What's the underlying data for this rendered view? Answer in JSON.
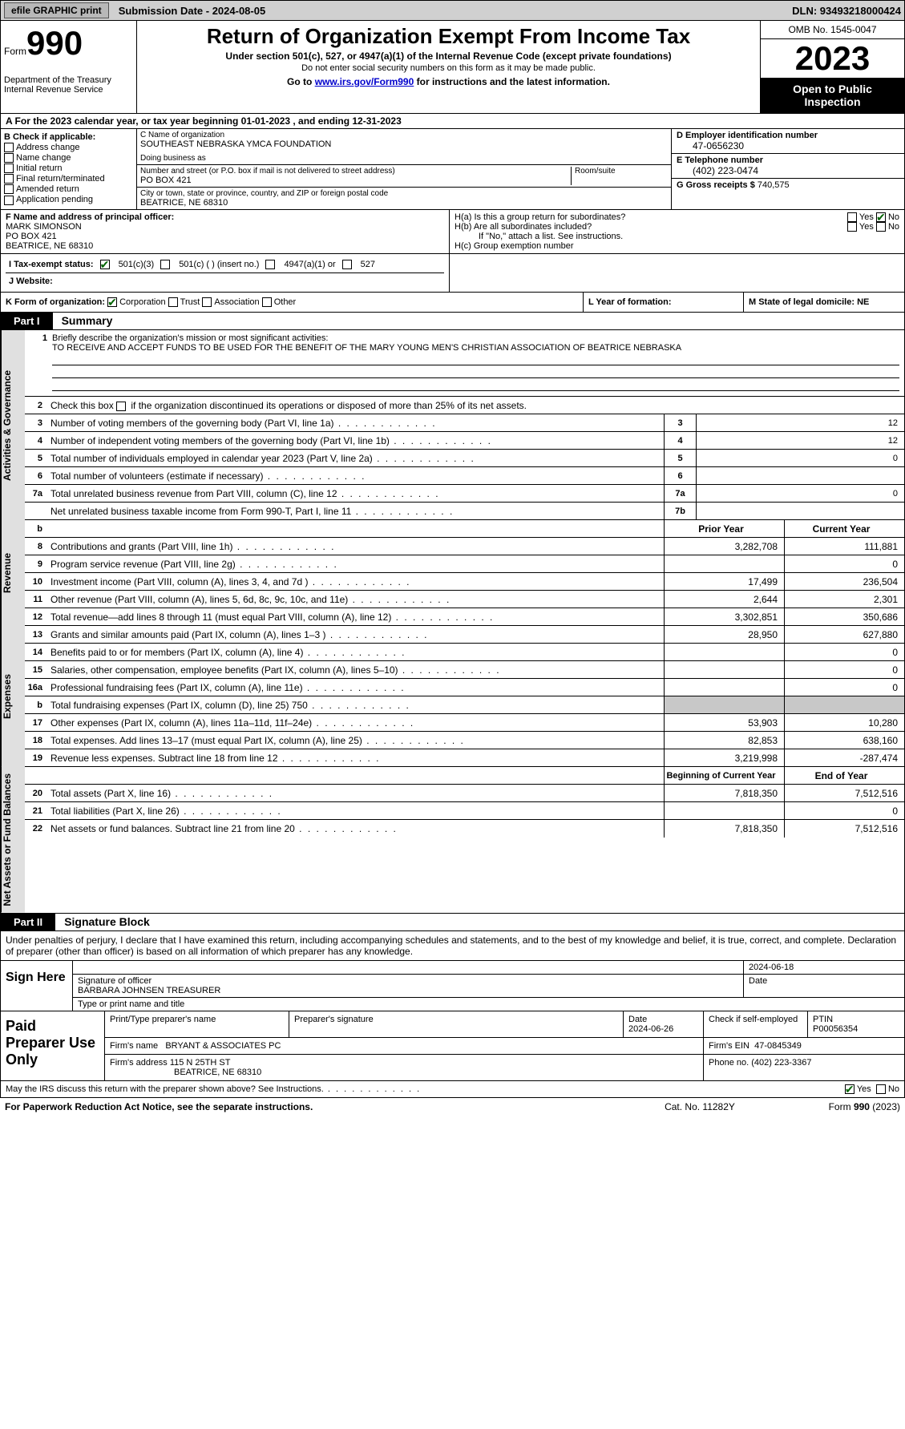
{
  "header_bar": {
    "efile": "efile GRAPHIC print",
    "submission": "Submission Date - 2024-08-05",
    "dln": "DLN: 93493218000424"
  },
  "top": {
    "form_word": "Form",
    "form_num": "990",
    "dept": "Department of the Treasury Internal Revenue Service",
    "title": "Return of Organization Exempt From Income Tax",
    "subtitle": "Under section 501(c), 527, or 4947(a)(1) of the Internal Revenue Code (except private foundations)",
    "note": "Do not enter social security numbers on this form as it may be made public.",
    "goto_prefix": "Go to ",
    "goto_link": "www.irs.gov/Form990",
    "goto_suffix": " for instructions and the latest information.",
    "omb": "OMB No. 1545-0047",
    "year": "2023",
    "open": "Open to Public Inspection"
  },
  "period": "A For the 2023 calendar year, or tax year beginning 01-01-2023   , and ending 12-31-2023",
  "section_b": {
    "label": "B Check if applicable:",
    "items": [
      "Address change",
      "Name change",
      "Initial return",
      "Final return/terminated",
      "Amended return",
      "Application pending"
    ]
  },
  "section_c": {
    "name_lbl": "C Name of organization",
    "name_val": "SOUTHEAST NEBRASKA YMCA FOUNDATION",
    "dba_lbl": "Doing business as",
    "dba_val": "",
    "street_lbl": "Number and street (or P.O. box if mail is not delivered to street address)",
    "room_lbl": "Room/suite",
    "street_val": "PO BOX 421",
    "city_lbl": "City or town, state or province, country, and ZIP or foreign postal code",
    "city_val": "BEATRICE, NE  68310"
  },
  "section_d": {
    "ein_lbl": "D Employer identification number",
    "ein_val": "47-0656230",
    "phone_lbl": "E Telephone number",
    "phone_val": "(402) 223-0474",
    "gross_lbl": "G Gross receipts $",
    "gross_val": "740,575"
  },
  "section_f": {
    "lbl": "F  Name and address of principal officer:",
    "name": "MARK SIMONSON",
    "addr1": "PO BOX 421",
    "addr2": "BEATRICE, NE  68310"
  },
  "section_h": {
    "ha": "H(a)  Is this a group return for subordinates?",
    "hb": "H(b)  Are all subordinates included?",
    "note": "If \"No,\" attach a list. See instructions.",
    "hc": "H(c)  Group exemption number"
  },
  "section_i": {
    "lbl": "I  Tax-exempt status:",
    "opt1": "501(c)(3)",
    "opt2": "501(c) (  ) (insert no.)",
    "opt3": "4947(a)(1) or",
    "opt4": "527"
  },
  "section_j": {
    "lbl": "J  Website:"
  },
  "section_k": {
    "lbl": "K Form of organization:",
    "opts": [
      "Corporation",
      "Trust",
      "Association",
      "Other"
    ]
  },
  "section_l": {
    "lbl": "L Year of formation:"
  },
  "section_m": {
    "lbl": "M State of legal domicile: NE"
  },
  "part1": {
    "header": "Part I",
    "title": "Summary"
  },
  "mission": {
    "lbl": "Briefly describe the organization's mission or most significant activities:",
    "text": "TO RECEIVE AND ACCEPT FUNDS TO BE USED FOR THE BENEFIT OF THE MARY YOUNG MEN'S CHRISTIAN ASSOCIATION OF BEATRICE NEBRASKA"
  },
  "line2": "Check this box      if the organization discontinued its operations or disposed of more than 25% of its net assets.",
  "sidelabels": {
    "gov": "Activities & Governance",
    "rev": "Revenue",
    "exp": "Expenses",
    "net": "Net Assets or Fund Balances"
  },
  "gov_lines": [
    {
      "n": "3",
      "d": "Number of voting members of the governing body (Part VI, line 1a)",
      "k": "3",
      "v": "12"
    },
    {
      "n": "4",
      "d": "Number of independent voting members of the governing body (Part VI, line 1b)",
      "k": "4",
      "v": "12"
    },
    {
      "n": "5",
      "d": "Total number of individuals employed in calendar year 2023 (Part V, line 2a)",
      "k": "5",
      "v": "0"
    },
    {
      "n": "6",
      "d": "Total number of volunteers (estimate if necessary)",
      "k": "6",
      "v": ""
    },
    {
      "n": "7a",
      "d": "Total unrelated business revenue from Part VIII, column (C), line 12",
      "k": "7a",
      "v": "0"
    },
    {
      "n": "",
      "d": "Net unrelated business taxable income from Form 990-T, Part I, line 11",
      "k": "7b",
      "v": ""
    }
  ],
  "col_headers": {
    "b": "b",
    "prior": "Prior Year",
    "curr": "Current Year"
  },
  "rev_lines": [
    {
      "n": "8",
      "d": "Contributions and grants (Part VIII, line 1h)",
      "p": "3,282,708",
      "c": "111,881"
    },
    {
      "n": "9",
      "d": "Program service revenue (Part VIII, line 2g)",
      "p": "",
      "c": "0"
    },
    {
      "n": "10",
      "d": "Investment income (Part VIII, column (A), lines 3, 4, and 7d )",
      "p": "17,499",
      "c": "236,504"
    },
    {
      "n": "11",
      "d": "Other revenue (Part VIII, column (A), lines 5, 6d, 8c, 9c, 10c, and 11e)",
      "p": "2,644",
      "c": "2,301"
    },
    {
      "n": "12",
      "d": "Total revenue—add lines 8 through 11 (must equal Part VIII, column (A), line 12)",
      "p": "3,302,851",
      "c": "350,686"
    }
  ],
  "exp_lines": [
    {
      "n": "13",
      "d": "Grants and similar amounts paid (Part IX, column (A), lines 1–3 )",
      "p": "28,950",
      "c": "627,880"
    },
    {
      "n": "14",
      "d": "Benefits paid to or for members (Part IX, column (A), line 4)",
      "p": "",
      "c": "0"
    },
    {
      "n": "15",
      "d": "Salaries, other compensation, employee benefits (Part IX, column (A), lines 5–10)",
      "p": "",
      "c": "0"
    },
    {
      "n": "16a",
      "d": "Professional fundraising fees (Part IX, column (A), line 11e)",
      "p": "",
      "c": "0"
    },
    {
      "n": "b",
      "d": "Total fundraising expenses (Part IX, column (D), line 25) 750",
      "p": "GREY",
      "c": "GREY"
    },
    {
      "n": "17",
      "d": "Other expenses (Part IX, column (A), lines 11a–11d, 11f–24e)",
      "p": "53,903",
      "c": "10,280"
    },
    {
      "n": "18",
      "d": "Total expenses. Add lines 13–17 (must equal Part IX, column (A), line 25)",
      "p": "82,853",
      "c": "638,160"
    },
    {
      "n": "19",
      "d": "Revenue less expenses. Subtract line 18 from line 12",
      "p": "3,219,998",
      "c": "-287,474"
    }
  ],
  "net_header": {
    "p": "Beginning of Current Year",
    "c": "End of Year"
  },
  "net_lines": [
    {
      "n": "20",
      "d": "Total assets (Part X, line 16)",
      "p": "7,818,350",
      "c": "7,512,516"
    },
    {
      "n": "21",
      "d": "Total liabilities (Part X, line 26)",
      "p": "",
      "c": "0"
    },
    {
      "n": "22",
      "d": "Net assets or fund balances. Subtract line 21 from line 20",
      "p": "7,818,350",
      "c": "7,512,516"
    }
  ],
  "part2": {
    "header": "Part II",
    "title": "Signature Block"
  },
  "perjury": "Under penalties of perjury, I declare that I have examined this return, including accompanying schedules and statements, and to the best of my knowledge and belief, it is true, correct, and complete. Declaration of preparer (other than officer) is based on all information of which preparer has any knowledge.",
  "sign": {
    "here": "Sign Here",
    "sig_lbl": "Signature of officer",
    "name": "BARBARA JOHNSEN TREASURER",
    "type_lbl": "Type or print name and title",
    "date": "2024-06-18",
    "date_lbl": "Date"
  },
  "paid": {
    "title": "Paid Preparer Use Only",
    "print_lbl": "Print/Type preparer's name",
    "sig_lbl": "Preparer's signature",
    "date_lbl": "Date",
    "date": "2024-06-26",
    "check_lbl": "Check       if self-employed",
    "ptin_lbl": "PTIN",
    "ptin": "P00056354",
    "firm_name_lbl": "Firm's name",
    "firm_name": "BRYANT & ASSOCIATES PC",
    "firm_ein_lbl": "Firm's EIN",
    "firm_ein": "47-0845349",
    "firm_addr_lbl": "Firm's address",
    "firm_addr1": "115 N 25TH ST",
    "firm_addr2": "BEATRICE, NE  68310",
    "phone_lbl": "Phone no.",
    "phone": "(402) 223-3367"
  },
  "discuss": "May the IRS discuss this return with the preparer shown above? See Instructions.",
  "yes": "Yes",
  "no": "No",
  "footer": {
    "paperwork": "For Paperwork Reduction Act Notice, see the separate instructions.",
    "cat": "Cat. No. 11282Y",
    "form": "Form 990 (2023)"
  }
}
